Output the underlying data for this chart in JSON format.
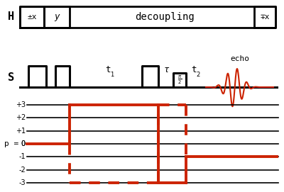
{
  "bg_color": "#ffffff",
  "H_label": "H",
  "S_label": "S",
  "p_label": "p =",
  "H_box1_text": "±x",
  "H_box2_text": "y",
  "H_box3_text": "decoupling",
  "H_box4_text": "∓x",
  "S_t1_text": "t",
  "S_tau_text": "τ",
  "S_t2_text": "t",
  "echo_text": "echo",
  "p_levels": [
    3,
    2,
    1,
    0,
    -1,
    -2,
    -3
  ],
  "line_color": "#000000",
  "red_color": "#cc2200"
}
